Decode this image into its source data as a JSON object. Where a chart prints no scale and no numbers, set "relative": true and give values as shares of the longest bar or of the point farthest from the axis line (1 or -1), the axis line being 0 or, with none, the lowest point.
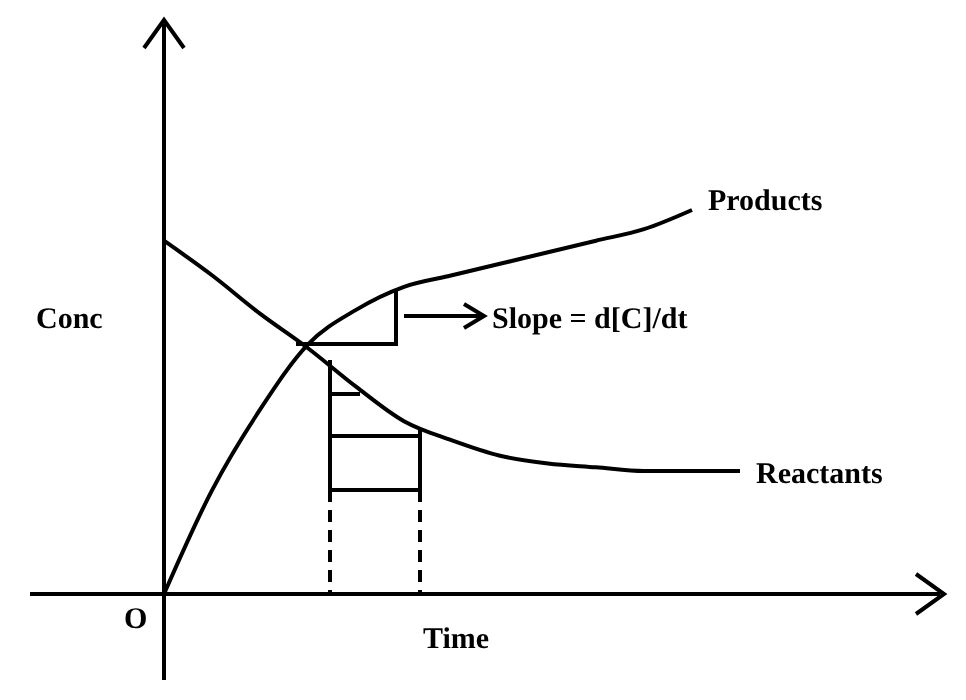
{
  "chart_data": {
    "type": "line",
    "relative": true,
    "xlabel": "Time",
    "ylabel": "Conc",
    "legend": false,
    "marker": "none",
    "line_style": "solid",
    "categories": [
      null,
      null,
      null,
      null,
      null,
      null,
      null,
      null,
      null,
      null,
      null,
      null,
      null
    ],
    "series": [
      {
        "name": "Products",
        "color": "#000000",
        "values": [
          0,
          0.27,
          0.48,
          0.65,
          0.74,
          0.8,
          0.83,
          0.86,
          0.89,
          0.92,
          0.95,
          1,
          null
        ]
      },
      {
        "name": "Reactants",
        "color": "#000000",
        "values": [
          0.92,
          0.83,
          0.73,
          0.64,
          0.54,
          0.45,
          0.4,
          0.36,
          0.34,
          0.33,
          0.32,
          0.32,
          0.32
        ]
      }
    ],
    "annotations": [
      "O",
      "Slope = d[C]/dt"
    ]
  }
}
